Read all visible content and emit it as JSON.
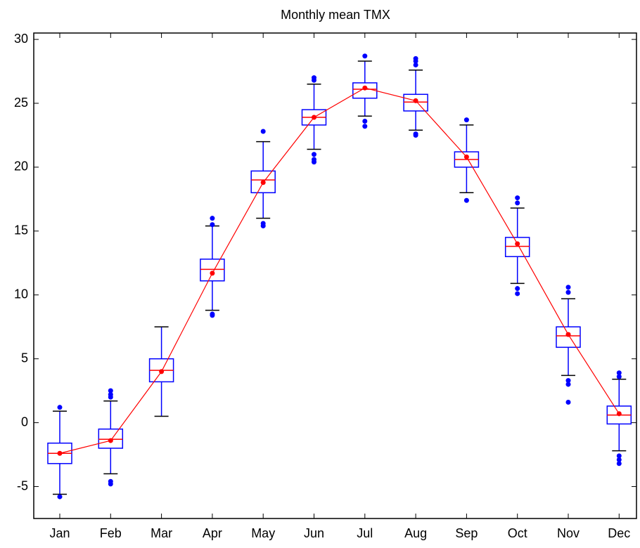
{
  "chart_data": {
    "type": "box",
    "title": "Monthly mean TMX",
    "categories": [
      "Jan",
      "Feb",
      "Mar",
      "Apr",
      "May",
      "Jun",
      "Jul",
      "Aug",
      "Sep",
      "Oct",
      "Nov",
      "Dec"
    ],
    "boxes": [
      {
        "whisker_low": -5.6,
        "q1": -3.2,
        "median": -2.4,
        "q3": -1.6,
        "whisker_high": 0.9,
        "outliers": [
          1.2,
          -5.8
        ]
      },
      {
        "whisker_low": -4.0,
        "q1": -2.0,
        "median": -1.3,
        "q3": -0.5,
        "whisker_high": 1.7,
        "outliers": [
          2.5,
          2.2,
          2.0,
          -4.6,
          -4.8
        ]
      },
      {
        "whisker_low": 0.5,
        "q1": 3.2,
        "median": 4.1,
        "q3": 5.0,
        "whisker_high": 7.5,
        "outliers": []
      },
      {
        "whisker_low": 8.8,
        "q1": 11.1,
        "median": 12.0,
        "q3": 12.8,
        "whisker_high": 15.4,
        "outliers": [
          16.0,
          15.5,
          8.5,
          8.4
        ]
      },
      {
        "whisker_low": 16.0,
        "q1": 18.0,
        "median": 19.0,
        "q3": 19.7,
        "whisker_high": 22.0,
        "outliers": [
          22.8,
          15.6,
          15.4
        ]
      },
      {
        "whisker_low": 21.4,
        "q1": 23.3,
        "median": 23.9,
        "q3": 24.5,
        "whisker_high": 26.5,
        "outliers": [
          27.0,
          26.8,
          21.0,
          20.6,
          20.4
        ]
      },
      {
        "whisker_low": 24.0,
        "q1": 25.4,
        "median": 26.1,
        "q3": 26.6,
        "whisker_high": 28.3,
        "outliers": [
          28.7,
          23.6,
          23.2
        ]
      },
      {
        "whisker_low": 22.9,
        "q1": 24.4,
        "median": 25.1,
        "q3": 25.7,
        "whisker_high": 27.6,
        "outliers": [
          28.5,
          28.3,
          28.0,
          22.6,
          22.5
        ]
      },
      {
        "whisker_low": 18.0,
        "q1": 20.0,
        "median": 20.6,
        "q3": 21.2,
        "whisker_high": 23.3,
        "outliers": [
          23.7,
          17.4
        ]
      },
      {
        "whisker_low": 10.9,
        "q1": 13.0,
        "median": 13.8,
        "q3": 14.5,
        "whisker_high": 16.8,
        "outliers": [
          17.6,
          17.2,
          10.5,
          10.1
        ]
      },
      {
        "whisker_low": 3.7,
        "q1": 5.9,
        "median": 6.8,
        "q3": 7.5,
        "whisker_high": 9.7,
        "outliers": [
          10.6,
          10.2,
          3.3,
          3.0,
          1.6
        ]
      },
      {
        "whisker_low": -2.2,
        "q1": -0.1,
        "median": 0.6,
        "q3": 1.3,
        "whisker_high": 3.4,
        "outliers": [
          3.9,
          3.6,
          -2.6,
          -2.9,
          -3.2
        ]
      }
    ],
    "means": [
      -2.4,
      -1.4,
      4.0,
      11.7,
      18.8,
      23.9,
      26.2,
      25.2,
      20.8,
      14.0,
      6.9,
      0.7
    ],
    "box_color": "#0000ff",
    "median_color": "#ff0000",
    "mean_color": "#ff0000",
    "whisker_cap_color": "#000000",
    "ylim": [
      -7.5,
      30.5
    ],
    "yticks": [
      -5,
      0,
      5,
      10,
      15,
      20,
      25,
      30
    ]
  }
}
